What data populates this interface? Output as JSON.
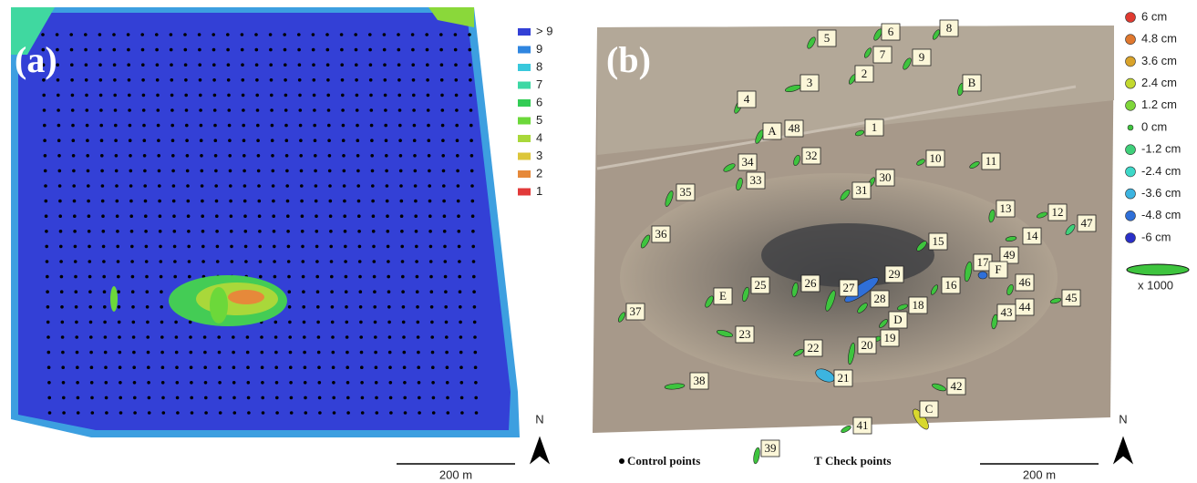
{
  "panel_a": {
    "label": "(a)",
    "legend": [
      {
        "label": "> 9",
        "color": "#3340d6"
      },
      {
        "label": "9",
        "color": "#2f86e0"
      },
      {
        "label": "8",
        "color": "#38c8dc"
      },
      {
        "label": "7",
        "color": "#3dd8a4"
      },
      {
        "label": "6",
        "color": "#33cc55"
      },
      {
        "label": "5",
        "color": "#6cd83a"
      },
      {
        "label": "4",
        "color": "#a9d83a"
      },
      {
        "label": "3",
        "color": "#dcc63a"
      },
      {
        "label": "2",
        "color": "#e6893a"
      },
      {
        "label": "1",
        "color": "#e23a3a"
      }
    ],
    "north": "N",
    "scale": "200 m"
  },
  "panel_b": {
    "label": "(b)",
    "points": [
      "5",
      "6",
      "8",
      "7",
      "9",
      "2",
      "3",
      "B",
      "4",
      "A",
      "48",
      "1",
      "32",
      "10",
      "11",
      "34",
      "33",
      "30",
      "31",
      "35",
      "13",
      "12",
      "47",
      "36",
      "14",
      "15",
      "49",
      "17",
      "F",
      "29",
      "46",
      "26",
      "25",
      "27",
      "16",
      "E",
      "28",
      "45",
      "44",
      "18",
      "43",
      "37",
      "D",
      "23",
      "19",
      "20",
      "22",
      "21",
      "38",
      "42",
      "C",
      "41",
      "39"
    ],
    "legend": [
      {
        "label": "6 cm",
        "color": "#e03a30"
      },
      {
        "label": "4.8 cm",
        "color": "#e0782e"
      },
      {
        "label": "3.6 cm",
        "color": "#d9a32a"
      },
      {
        "label": "2.4 cm",
        "color": "#c3d92e"
      },
      {
        "label": "1.2 cm",
        "color": "#7ed63a"
      },
      {
        "label": "0 cm",
        "color": "#3ec43e"
      },
      {
        "label": "-1.2 cm",
        "color": "#3fd07a"
      },
      {
        "label": "-2.4 cm",
        "color": "#3dd8c8"
      },
      {
        "label": "-3.6 cm",
        "color": "#3cb4e0"
      },
      {
        "label": "-4.8 cm",
        "color": "#2f6fd8"
      },
      {
        "label": "-6 cm",
        "color": "#2a2fc8"
      }
    ],
    "ellipse_legend": "x 1000",
    "control_points": "Control points",
    "check_points": "Check points",
    "north": "N",
    "scale": "200 m"
  }
}
